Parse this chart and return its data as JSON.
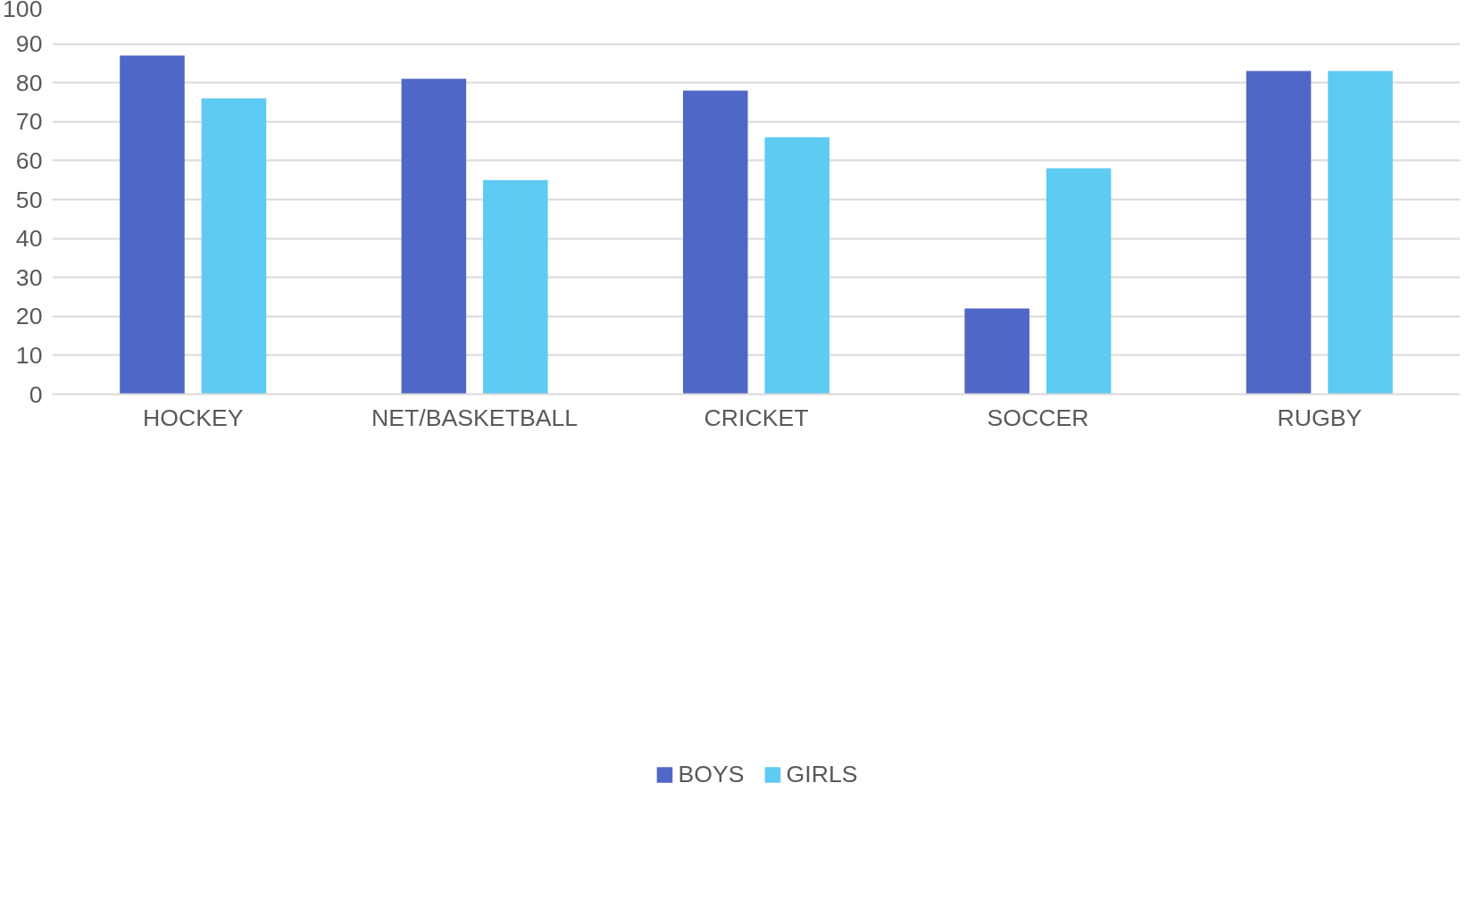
{
  "chart_data": {
    "type": "bar",
    "categories": [
      "HOCKEY",
      "NET/BASKETBALL",
      "CRICKET",
      "SOCCER",
      "RUGBY"
    ],
    "series": [
      {
        "name": "BOYS",
        "color": "#4f67c6",
        "values": [
          87,
          81,
          78,
          22,
          83
        ]
      },
      {
        "name": "GIRLS",
        "color": "#5ecbf2",
        "values": [
          76,
          55,
          66,
          58,
          83
        ]
      }
    ],
    "ylim": [
      0,
      100
    ],
    "yticks": [
      0,
      10,
      20,
      30,
      40,
      50,
      60,
      70,
      80,
      90,
      100
    ],
    "grid": "y",
    "legend": "bottom"
  }
}
